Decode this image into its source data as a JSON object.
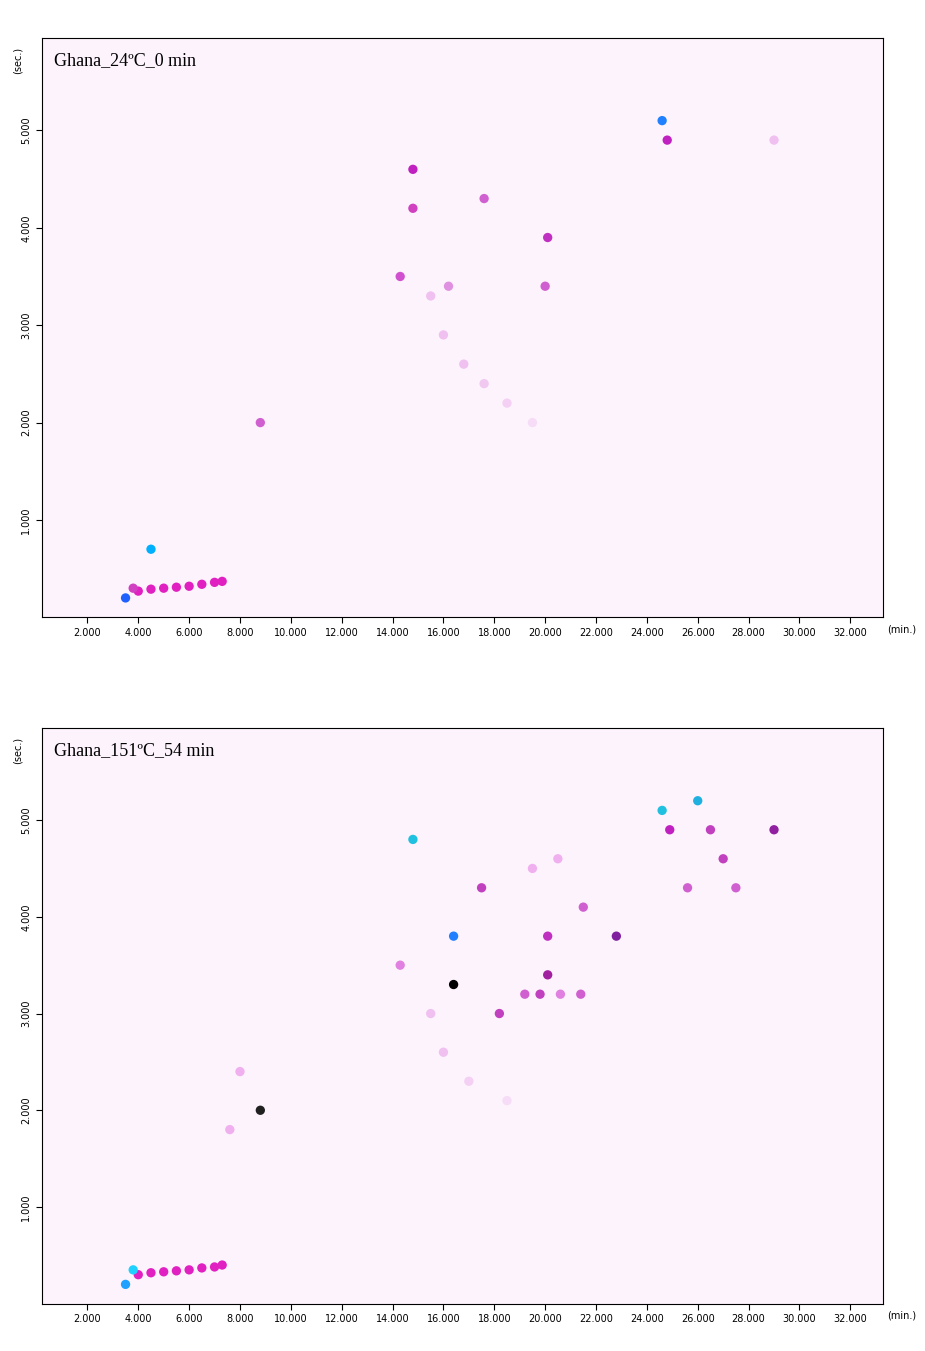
{
  "chart_data": [
    {
      "type": "scatter",
      "title": "Ghana_24ºC_0 min",
      "x_label": "(min.)",
      "y_label": "(sec.)",
      "marker": "o",
      "xlim": [
        0.2,
        33.3
      ],
      "ylim": [
        0,
        5.95
      ],
      "xticks": [
        {
          "value": 2,
          "label": "2.000"
        },
        {
          "value": 4,
          "label": "4.000"
        },
        {
          "value": 6,
          "label": "6.000"
        },
        {
          "value": 8,
          "label": "8.000"
        },
        {
          "value": 10,
          "label": "10.000"
        },
        {
          "value": 12,
          "label": "12.000"
        },
        {
          "value": 14,
          "label": "14.000"
        },
        {
          "value": 16,
          "label": "16.000"
        },
        {
          "value": 18,
          "label": "18.000"
        },
        {
          "value": 20,
          "label": "20.000"
        },
        {
          "value": 22,
          "label": "22.000"
        },
        {
          "value": 24,
          "label": "24.000"
        },
        {
          "value": 26,
          "label": "26.000"
        },
        {
          "value": 28,
          "label": "28.000"
        },
        {
          "value": 30,
          "label": "30.000"
        },
        {
          "value": 32,
          "label": "32.000"
        }
      ],
      "yticks": [
        {
          "value": 1,
          "label": "1.000"
        },
        {
          "value": 2,
          "label": "2.000"
        },
        {
          "value": 3,
          "label": "3.000"
        },
        {
          "value": 4,
          "label": "4.000"
        },
        {
          "value": 5,
          "label": "5.000"
        }
      ],
      "x": [
        4.0,
        4.5,
        5.0,
        5.5,
        6.0,
        6.5,
        7.0,
        7.3,
        3.8,
        3.5,
        4.5,
        8.8,
        14.3,
        14.8,
        14.8,
        16.2,
        17.6,
        20.1,
        20.0,
        15.5,
        16.0,
        16.8,
        17.6,
        18.5,
        19.5,
        24.6,
        24.8,
        29.0
      ],
      "y": [
        0.27,
        0.29,
        0.3,
        0.31,
        0.32,
        0.34,
        0.36,
        0.37,
        0.3,
        0.2,
        0.7,
        2.0,
        3.5,
        4.6,
        4.2,
        3.4,
        4.3,
        3.9,
        3.4,
        3.3,
        2.9,
        2.6,
        2.4,
        2.2,
        2.0,
        5.1,
        4.9,
        4.9
      ],
      "colors": [
        "#e020c0",
        "#e020c0",
        "#e020c0",
        "#e020c0",
        "#e020c0",
        "#e020c0",
        "#e020c0",
        "#e020c0",
        "#d040c0",
        "#2060ff",
        "#00b0ff",
        "#d060d0",
        "#d050d0",
        "#c020c0",
        "#d040c0",
        "#e090e0",
        "#d060d0",
        "#c030c0",
        "#d060d0",
        "#f0c0f0",
        "#f0c0f0",
        "#f0c0f0",
        "#f0c8f0",
        "#f4d0f4",
        "#f6dcf6",
        "#2080ff",
        "#c020c0",
        "#f0c0f0"
      ]
    },
    {
      "type": "scatter",
      "title": "Ghana_151ºC_54 min",
      "x_label": "(min.)",
      "y_label": "(sec.)",
      "marker": "o",
      "xlim": [
        0.2,
        33.3
      ],
      "ylim": [
        0,
        5.95
      ],
      "xticks": [
        {
          "value": 2,
          "label": "2.000"
        },
        {
          "value": 4,
          "label": "4.000"
        },
        {
          "value": 6,
          "label": "6.000"
        },
        {
          "value": 8,
          "label": "8.000"
        },
        {
          "value": 10,
          "label": "10.000"
        },
        {
          "value": 12,
          "label": "12.000"
        },
        {
          "value": 14,
          "label": "14.000"
        },
        {
          "value": 16,
          "label": "16.000"
        },
        {
          "value": 18,
          "label": "18.000"
        },
        {
          "value": 20,
          "label": "20.000"
        },
        {
          "value": 22,
          "label": "22.000"
        },
        {
          "value": 24,
          "label": "24.000"
        },
        {
          "value": 26,
          "label": "26.000"
        },
        {
          "value": 28,
          "label": "28.000"
        },
        {
          "value": 30,
          "label": "30.000"
        },
        {
          "value": 32,
          "label": "32.000"
        }
      ],
      "yticks": [
        {
          "value": 1,
          "label": "1.000"
        },
        {
          "value": 2,
          "label": "2.000"
        },
        {
          "value": 3,
          "label": "3.000"
        },
        {
          "value": 4,
          "label": "4.000"
        },
        {
          "value": 5,
          "label": "5.000"
        }
      ],
      "x": [
        4.0,
        4.5,
        5.0,
        5.5,
        6.0,
        6.5,
        7.0,
        7.3,
        3.5,
        3.8,
        7.6,
        8.0,
        8.8,
        14.3,
        14.8,
        15.5,
        16.0,
        17.0,
        18.5,
        16.4,
        16.4,
        17.5,
        18.2,
        19.2,
        19.8,
        20.1,
        20.1,
        20.6,
        21.4,
        21.5,
        19.5,
        20.5,
        22.8,
        24.6,
        24.9,
        25.6,
        26.0,
        26.5,
        27.0,
        27.5,
        29.0
      ],
      "y": [
        0.3,
        0.32,
        0.33,
        0.34,
        0.35,
        0.37,
        0.38,
        0.4,
        0.2,
        0.35,
        1.8,
        2.4,
        2.0,
        3.5,
        4.8,
        3.0,
        2.6,
        2.3,
        2.1,
        3.3,
        3.8,
        4.3,
        3.0,
        3.2,
        3.2,
        3.4,
        3.8,
        3.2,
        3.2,
        4.1,
        4.5,
        4.6,
        3.8,
        5.1,
        4.9,
        4.3,
        5.2,
        4.9,
        4.6,
        4.3,
        4.9
      ],
      "colors": [
        "#e020c0",
        "#e020c0",
        "#e020c0",
        "#e020c0",
        "#e020c0",
        "#e020c0",
        "#e020c0",
        "#e020c0",
        "#20a0ff",
        "#20d0ff",
        "#f0b0f0",
        "#f0b0f0",
        "#202020",
        "#e080e0",
        "#20c0e0",
        "#f0c0f0",
        "#f0c0f0",
        "#f4d0f4",
        "#f6dcf6",
        "#000000",
        "#2080ff",
        "#c040c0",
        "#c040c0",
        "#d060d0",
        "#c040c0",
        "#a020a0",
        "#c030c0",
        "#e080e0",
        "#d060d0",
        "#d060d0",
        "#f0b0f0",
        "#f0b0f0",
        "#8020a0",
        "#20c0e0",
        "#c020c0",
        "#d060d0",
        "#20b0e0",
        "#c040c0",
        "#c040c0",
        "#d060d0",
        "#9020a0"
      ]
    }
  ]
}
